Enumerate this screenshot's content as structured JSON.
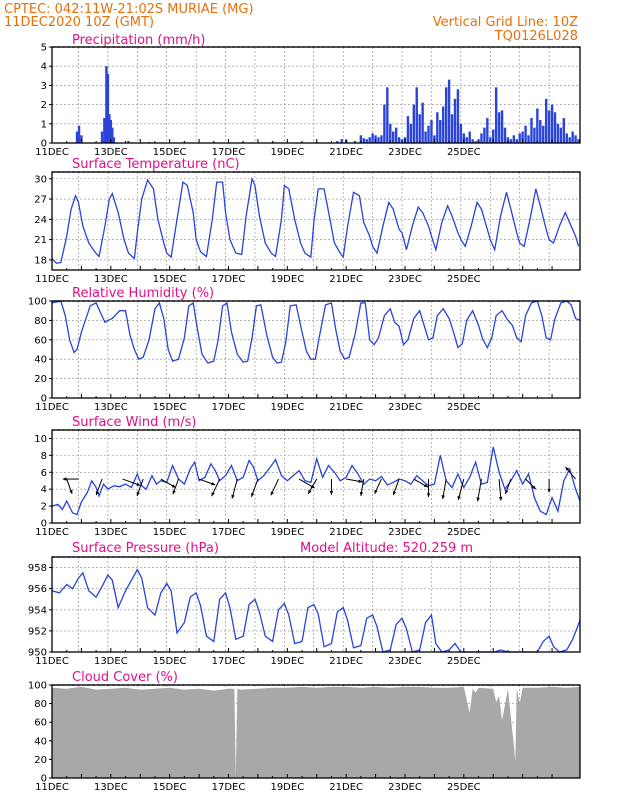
{
  "header": {
    "line1": "CPTEC:   042:11W-21:02S   MURIAE (MG)",
    "line2": "11DEC2020 10Z (GMT)",
    "right1": "Vertical Grid Line: 10Z",
    "right2": "TQ0126L028"
  },
  "colors": {
    "header": "#e8700a",
    "title": "#e0108a",
    "line": "#2a44d8",
    "bar": "#2a44d8",
    "cloud": "#a8a8a8"
  },
  "chart_data": [
    {
      "type": "bar",
      "title": "Precipitation (mm/h)",
      "ylim": [
        0,
        5
      ],
      "yticks": [
        "0",
        "1",
        "2",
        "3",
        "4",
        "5"
      ],
      "x_tick_labels": [
        "11DEC",
        "13DEC",
        "15DEC",
        "17DEC",
        "19DEC",
        "21DEC",
        "23DEC",
        "25DEC"
      ],
      "x_unit": "days since 11DEC 10Z",
      "x": [
        0.85,
        0.92,
        1.0,
        1.7,
        1.78,
        1.85,
        1.9,
        1.95,
        2.0,
        2.05,
        2.1,
        2.6,
        3.3,
        4.5,
        5.5,
        6.5,
        7.5,
        9.0,
        9.7,
        9.85,
        10.0,
        10.3,
        10.5,
        10.6,
        10.7,
        10.8,
        10.9,
        11.0,
        11.1,
        11.2,
        11.3,
        11.4,
        11.5,
        11.6,
        11.7,
        11.8,
        11.9,
        12.0,
        12.1,
        12.2,
        12.3,
        12.4,
        12.5,
        12.6,
        12.7,
        12.8,
        12.9,
        13.0,
        13.1,
        13.2,
        13.3,
        13.4,
        13.5,
        13.6,
        13.7,
        13.8,
        13.9,
        14.0,
        14.1,
        14.2,
        14.3,
        14.4,
        14.5,
        14.6,
        14.7,
        14.8,
        14.9,
        15.0,
        15.1,
        15.2,
        15.3,
        15.4,
        15.5,
        15.6,
        15.7,
        15.8,
        15.9,
        16.0,
        16.1,
        16.2,
        16.3,
        16.4,
        16.5,
        16.6,
        16.7,
        16.8,
        16.9,
        17.0,
        17.1,
        17.2,
        17.3,
        17.4,
        17.5,
        17.6,
        17.7,
        17.8,
        17.9
      ],
      "values": [
        0.6,
        0.9,
        0.4,
        0.6,
        1.3,
        4.0,
        3.6,
        1.5,
        1.2,
        0.8,
        0.3,
        0.1,
        0.05,
        0.05,
        0.05,
        0.05,
        0.05,
        0.05,
        0.1,
        0.2,
        0.15,
        0.1,
        0.4,
        0.25,
        0.2,
        0.3,
        0.5,
        0.4,
        0.3,
        0.4,
        2.0,
        2.9,
        1.0,
        0.6,
        0.8,
        0.3,
        0.2,
        0.3,
        1.4,
        1.0,
        2.0,
        2.9,
        1.5,
        2.1,
        0.6,
        0.9,
        1.2,
        0.4,
        1.6,
        1.2,
        1.9,
        2.9,
        3.3,
        1.5,
        2.3,
        2.8,
        1.0,
        0.5,
        0.3,
        0.6,
        0.2,
        0.1,
        0.2,
        0.5,
        0.8,
        1.3,
        0.3,
        0.7,
        2.9,
        1.6,
        1.7,
        0.8,
        0.3,
        0.2,
        0.4,
        0.2,
        0.5,
        0.6,
        0.9,
        0.4,
        1.3,
        0.8,
        1.8,
        1.2,
        0.9,
        2.3,
        1.7,
        2.0,
        1.6,
        1.0,
        0.8,
        1.3,
        0.5,
        0.3,
        0.6,
        0.4,
        0.2
      ]
    },
    {
      "type": "line",
      "title": "Surface Temperature (nC)",
      "ylim": [
        16.5,
        31
      ],
      "yticks": [
        "18",
        "21",
        "24",
        "27",
        "30"
      ],
      "x_tick_labels": [
        "11DEC",
        "13DEC",
        "15DEC",
        "17DEC",
        "19DEC",
        "21DEC",
        "23DEC",
        "25DEC"
      ],
      "x": [
        0.0,
        0.15,
        0.3,
        0.5,
        0.65,
        0.8,
        0.9,
        1.05,
        1.25,
        1.45,
        1.6,
        1.8,
        1.95,
        2.05,
        2.25,
        2.45,
        2.6,
        2.8,
        2.9,
        3.05,
        3.25,
        3.45,
        3.6,
        3.8,
        3.9,
        4.05,
        4.25,
        4.45,
        4.6,
        4.8,
        4.9,
        5.05,
        5.25,
        5.45,
        5.6,
        5.8,
        5.9,
        6.05,
        6.25,
        6.45,
        6.6,
        6.8,
        6.9,
        7.05,
        7.25,
        7.45,
        7.6,
        7.8,
        7.9,
        8.05,
        8.25,
        8.45,
        8.6,
        8.8,
        8.9,
        9.05,
        9.25,
        9.45,
        9.6,
        9.8,
        9.9,
        10.05,
        10.25,
        10.45,
        10.6,
        10.8,
        10.9,
        11.05,
        11.25,
        11.45,
        11.6,
        11.8,
        11.9,
        12.05,
        12.25,
        12.45,
        12.6,
        12.8,
        12.9,
        13.05,
        13.25,
        13.45,
        13.6,
        13.8,
        13.9,
        14.05,
        14.25,
        14.45,
        14.6,
        14.8,
        14.9,
        15.05,
        15.25,
        15.45,
        15.6,
        15.8,
        15.9,
        16.05,
        16.25,
        16.45,
        16.6,
        16.8,
        16.9,
        17.05,
        17.25,
        17.45,
        17.6,
        17.8,
        17.9
      ],
      "values": [
        18.2,
        17.5,
        17.6,
        21.5,
        25.5,
        27.5,
        26.5,
        23.0,
        20.5,
        19.2,
        18.5,
        23.0,
        27.0,
        27.8,
        25.0,
        21.0,
        19.0,
        18.2,
        22.0,
        27.0,
        29.8,
        28.5,
        24.0,
        20.5,
        19.0,
        18.4,
        24.0,
        29.5,
        29.0,
        25.0,
        21.0,
        19.2,
        18.5,
        24.0,
        29.5,
        29.5,
        25.0,
        21.0,
        19.0,
        18.8,
        24.5,
        30.0,
        29.0,
        24.5,
        20.5,
        19.0,
        18.5,
        24.0,
        29.0,
        28.5,
        24.0,
        20.5,
        19.0,
        18.4,
        23.5,
        28.5,
        28.5,
        24.0,
        20.5,
        19.0,
        18.4,
        23.0,
        28.0,
        27.5,
        23.5,
        21.5,
        20.0,
        19.0,
        23.0,
        26.5,
        25.5,
        22.5,
        22.0,
        19.5,
        23.0,
        25.8,
        25.0,
        23.0,
        21.5,
        19.5,
        23.5,
        26.0,
        24.5,
        22.0,
        21.0,
        20.0,
        23.0,
        26.5,
        25.5,
        22.5,
        21.0,
        19.5,
        24.5,
        28.0,
        25.5,
        22.0,
        20.5,
        20.0,
        24.0,
        28.5,
        26.0,
        22.5,
        21.0,
        20.5,
        23.0,
        25.0,
        23.5,
        21.5,
        20.0
      ]
    },
    {
      "type": "line",
      "title": "Relative Humidity (%)",
      "ylim": [
        0,
        100
      ],
      "yticks": [
        "0",
        "20",
        "40",
        "60",
        "80",
        "100"
      ],
      "x_tick_labels": [
        "11DEC",
        "13DEC",
        "15DEC",
        "17DEC",
        "19DEC",
        "21DEC",
        "23DEC",
        "25DEC"
      ],
      "x": [
        0.0,
        0.3,
        0.45,
        0.6,
        0.75,
        0.85,
        1.0,
        1.3,
        1.5,
        1.65,
        1.8,
        1.9,
        2.05,
        2.3,
        2.5,
        2.65,
        2.8,
        2.95,
        3.1,
        3.3,
        3.5,
        3.65,
        3.8,
        3.95,
        4.1,
        4.3,
        4.5,
        4.65,
        4.8,
        4.95,
        5.1,
        5.3,
        5.5,
        5.65,
        5.8,
        5.95,
        6.1,
        6.3,
        6.5,
        6.65,
        6.8,
        6.95,
        7.1,
        7.3,
        7.5,
        7.65,
        7.8,
        7.95,
        8.1,
        8.3,
        8.5,
        8.65,
        8.8,
        8.95,
        9.1,
        9.3,
        9.5,
        9.65,
        9.8,
        9.95,
        10.1,
        10.3,
        10.5,
        10.65,
        10.8,
        10.95,
        11.1,
        11.3,
        11.5,
        11.65,
        11.8,
        11.95,
        12.1,
        12.3,
        12.5,
        12.65,
        12.8,
        12.95,
        13.1,
        13.3,
        13.5,
        13.65,
        13.8,
        13.95,
        14.1,
        14.3,
        14.5,
        14.65,
        14.8,
        14.95,
        15.1,
        15.3,
        15.5,
        15.65,
        15.8,
        15.95,
        16.1,
        16.3,
        16.5,
        16.65,
        16.8,
        16.95,
        17.1,
        17.3,
        17.5,
        17.65,
        17.8,
        17.95
      ],
      "values": [
        98,
        100,
        85,
        60,
        47,
        50,
        68,
        95,
        98,
        88,
        78,
        80,
        82,
        90,
        90,
        65,
        50,
        40,
        42,
        60,
        92,
        98,
        82,
        50,
        38,
        40,
        62,
        95,
        98,
        70,
        45,
        36,
        38,
        60,
        95,
        98,
        68,
        45,
        37,
        38,
        62,
        95,
        96,
        65,
        42,
        36,
        37,
        58,
        95,
        96,
        68,
        48,
        40,
        40,
        65,
        96,
        98,
        70,
        48,
        40,
        42,
        65,
        98,
        98,
        60,
        55,
        62,
        85,
        92,
        78,
        74,
        55,
        60,
        82,
        90,
        75,
        60,
        62,
        85,
        92,
        82,
        68,
        52,
        56,
        80,
        90,
        75,
        60,
        52,
        62,
        85,
        90,
        80,
        75,
        62,
        58,
        85,
        98,
        100,
        85,
        62,
        60,
        82,
        98,
        100,
        96,
        82,
        80
      ]
    },
    {
      "type": "line",
      "title": "Surface Wind (m/s)",
      "ylim": [
        0,
        11
      ],
      "yticks": [
        "0",
        "2",
        "4",
        "6",
        "8",
        "10"
      ],
      "x_tick_labels": [
        "11DEC",
        "13DEC",
        "15DEC",
        "17DEC",
        "19DEC",
        "21DEC",
        "23DEC",
        "25DEC"
      ],
      "x": [
        0.0,
        0.2,
        0.35,
        0.5,
        0.7,
        0.85,
        1.0,
        1.2,
        1.35,
        1.5,
        1.6,
        1.75,
        1.9,
        2.1,
        2.3,
        2.5,
        2.7,
        2.9,
        3.05,
        3.2,
        3.4,
        3.55,
        3.7,
        3.9,
        4.1,
        4.3,
        4.5,
        4.7,
        4.85,
        5.0,
        5.2,
        5.4,
        5.55,
        5.7,
        5.9,
        6.1,
        6.3,
        6.5,
        6.7,
        6.85,
        7.0,
        7.2,
        7.4,
        7.6,
        7.8,
        8.0,
        8.2,
        8.4,
        8.6,
        8.8,
        9.0,
        9.2,
        9.4,
        9.6,
        9.8,
        10.0,
        10.2,
        10.4,
        10.6,
        10.8,
        11.0,
        11.2,
        11.4,
        11.6,
        11.8,
        12.0,
        12.2,
        12.4,
        12.6,
        12.8,
        13.0,
        13.2,
        13.4,
        13.6,
        13.8,
        14.0,
        14.2,
        14.4,
        14.6,
        14.8,
        15.0,
        15.2,
        15.4,
        15.6,
        15.8,
        16.0,
        16.2,
        16.4,
        16.6,
        16.8,
        17.0,
        17.2,
        17.4,
        17.6,
        17.8,
        17.95
      ],
      "values": [
        2.0,
        2.2,
        1.6,
        2.6,
        1.2,
        1.0,
        2.5,
        3.6,
        5.0,
        4.2,
        3.2,
        4.6,
        4.0,
        4.4,
        4.3,
        4.6,
        4.2,
        5.8,
        4.4,
        4.0,
        5.6,
        4.6,
        5.0,
        4.8,
        6.8,
        5.2,
        4.6,
        6.4,
        7.2,
        5.0,
        5.4,
        7.0,
        6.2,
        5.0,
        5.6,
        6.8,
        5.0,
        5.4,
        7.4,
        6.6,
        5.0,
        5.6,
        6.5,
        7.5,
        5.6,
        5.0,
        5.6,
        6.2,
        5.0,
        4.8,
        7.6,
        5.4,
        6.8,
        6.0,
        5.0,
        5.4,
        6.8,
        5.8,
        4.6,
        5.2,
        5.0,
        5.5,
        4.5,
        4.8,
        5.2,
        5.0,
        4.6,
        5.6,
        5.0,
        4.4,
        4.6,
        8.0,
        5.0,
        4.2,
        5.8,
        4.2,
        5.4,
        7.2,
        4.6,
        4.8,
        9.0,
        6.0,
        4.0,
        5.0,
        6.2,
        4.6,
        5.8,
        3.0,
        1.4,
        1.0,
        3.0,
        1.4,
        5.0,
        6.4,
        4.0,
        2.6
      ]
    },
    {
      "type": "line",
      "title": "Surface Pressure (hPa)",
      "annotation": "Model Altitude: 520.259 m",
      "ylim": [
        950,
        959
      ],
      "yticks": [
        "950",
        "952",
        "954",
        "956",
        "958"
      ],
      "x_tick_labels": [
        "11DEC",
        "13DEC",
        "15DEC",
        "17DEC",
        "19DEC",
        "21DEC",
        "23DEC",
        "25DEC"
      ],
      "x": [
        0.0,
        0.25,
        0.5,
        0.7,
        0.9,
        1.05,
        1.25,
        1.5,
        1.7,
        1.9,
        2.05,
        2.25,
        2.5,
        2.7,
        2.9,
        3.05,
        3.25,
        3.5,
        3.7,
        3.9,
        4.05,
        4.25,
        4.5,
        4.7,
        4.9,
        5.05,
        5.25,
        5.5,
        5.7,
        5.9,
        6.05,
        6.25,
        6.5,
        6.7,
        6.9,
        7.05,
        7.25,
        7.5,
        7.7,
        7.9,
        8.05,
        8.25,
        8.5,
        8.7,
        8.9,
        9.05,
        9.25,
        9.5,
        9.7,
        9.9,
        10.05,
        10.25,
        10.5,
        10.7,
        10.9,
        11.05,
        11.25,
        11.5,
        11.7,
        11.9,
        12.05,
        12.25,
        12.5,
        12.7,
        12.9,
        13.05,
        13.25,
        13.5,
        13.7,
        13.9,
        14.05,
        14.25,
        14.5,
        14.7,
        14.9,
        15.05,
        15.25,
        15.5,
        15.7,
        15.9,
        16.05,
        16.25,
        16.5,
        16.7,
        16.9,
        17.05,
        17.25,
        17.5,
        17.7,
        17.95
      ],
      "values": [
        955.8,
        955.6,
        956.4,
        956.0,
        957.0,
        957.5,
        955.8,
        955.2,
        956.2,
        957.3,
        956.8,
        954.2,
        955.8,
        956.8,
        957.8,
        957.0,
        954.2,
        953.5,
        955.6,
        956.5,
        955.8,
        951.8,
        952.8,
        955.2,
        955.6,
        954.4,
        951.5,
        951.0,
        955.0,
        955.6,
        954.2,
        951.2,
        951.5,
        954.5,
        955.0,
        953.8,
        951.5,
        951.0,
        954.0,
        954.6,
        953.5,
        950.8,
        951.0,
        954.2,
        954.5,
        953.6,
        950.5,
        950.8,
        953.8,
        954.2,
        953.0,
        950.4,
        950.6,
        953.2,
        953.5,
        952.4,
        950.0,
        950.2,
        952.6,
        953.2,
        952.2,
        950.0,
        950.2,
        952.8,
        953.5,
        950.8,
        950.0,
        950.2,
        950.8,
        950.0,
        950.0,
        950.0,
        950.0,
        950.0,
        950.0,
        950.0,
        950.2,
        950.0,
        950.0,
        950.0,
        950.0,
        950.0,
        950.0,
        951.0,
        951.5,
        950.5,
        950.0,
        950.2,
        951.2,
        953.0
      ]
    },
    {
      "type": "area",
      "title": "Cloud Cover (%)",
      "ylim": [
        0,
        100
      ],
      "yticks": [
        "0",
        "20",
        "40",
        "60",
        "80",
        "100"
      ],
      "x_tick_labels": [
        "11DEC",
        "13DEC",
        "15DEC",
        "17DEC",
        "19DEC",
        "21DEC",
        "23DEC",
        "25DEC"
      ],
      "x": [
        0.0,
        0.5,
        1.0,
        1.5,
        2.0,
        2.5,
        3.0,
        3.5,
        4.0,
        4.5,
        5.0,
        5.5,
        6.0,
        6.2,
        6.25,
        6.3,
        6.4,
        7.0,
        7.5,
        8.0,
        8.5,
        9.0,
        9.5,
        10.0,
        10.5,
        11.0,
        11.5,
        12.0,
        12.5,
        13.0,
        13.5,
        14.0,
        14.2,
        14.3,
        14.4,
        14.5,
        15.0,
        15.1,
        15.2,
        15.3,
        15.5,
        15.7,
        15.75,
        15.8,
        15.9,
        16.0,
        16.5,
        17.0,
        17.5,
        17.95
      ],
      "values": [
        97,
        96,
        98,
        95,
        96,
        97,
        95,
        96,
        97,
        95,
        96,
        94,
        96,
        96,
        1,
        96,
        95,
        96,
        97,
        97,
        98,
        97,
        98,
        98,
        97,
        98,
        97,
        98,
        98,
        97,
        97,
        98,
        70,
        96,
        92,
        97,
        96,
        82,
        88,
        62,
        96,
        35,
        18,
        96,
        80,
        97,
        97,
        98,
        97,
        98
      ]
    }
  ],
  "wind_arrows": {
    "x": [
      0.5,
      0.9,
      1.7,
      2.4,
      3.1,
      3.7,
      4.3,
      5.0,
      5.7,
      6.3,
      7.0,
      7.7,
      8.4,
      9.0,
      9.5,
      10.0,
      10.6,
      11.2,
      11.8,
      12.3,
      12.8,
      13.4,
      14.0,
      14.6,
      15.2,
      15.6,
      16.1,
      16.9,
      17.8
    ],
    "speed": [
      1.5,
      1.5,
      1.8,
      2.2,
      2.0,
      1.8,
      1.6,
      1.8,
      2.2,
      2.5,
      2.2,
      2.0,
      2.0,
      1.8,
      1.5,
      1.6,
      1.8,
      1.6,
      1.8,
      1.6,
      2.0,
      2.5,
      2.8,
      3.0,
      2.8,
      1.5,
      1.2,
      1.0,
      1.5
    ],
    "dir_deg": [
      160,
      270,
      200,
      110,
      200,
      120,
      200,
      110,
      205,
      195,
      200,
      205,
      120,
      210,
      180,
      100,
      190,
      205,
      200,
      120,
      180,
      190,
      195,
      190,
      175,
      200,
      135,
      180,
      320
    ]
  },
  "vertical_grid_days": [
    0.9,
    1.9,
    2.9,
    3.9,
    4.9,
    5.9,
    6.9,
    7.9,
    8.9,
    9.9,
    10.9,
    11.9,
    12.9,
    13.9,
    14.9,
    15.9,
    16.9
  ]
}
